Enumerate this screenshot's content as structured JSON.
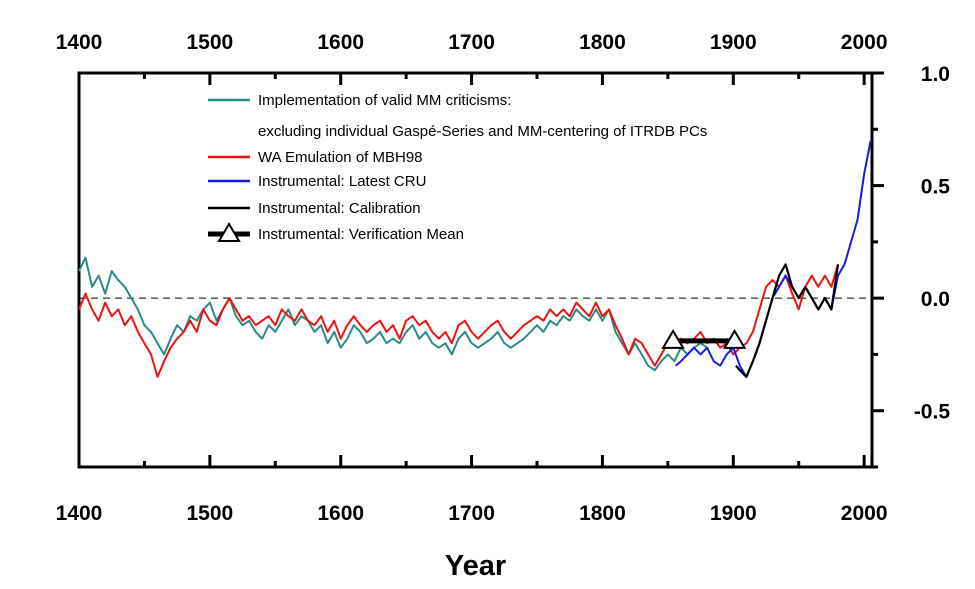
{
  "chart_data": {
    "type": "line",
    "title": "",
    "xlabel": "Year",
    "ylabel": "",
    "xlim": [
      1400,
      2006
    ],
    "ylim": [
      -0.75,
      1.0
    ],
    "x_ticks": [
      1400,
      1500,
      1600,
      1700,
      1800,
      1900,
      2000
    ],
    "x_tick_labels_bottom": [
      "1400",
      "1500",
      "1600",
      "1700",
      "1800",
      "1900",
      "2000"
    ],
    "x_tick_labels_top": [
      "1400",
      "1500",
      "1600",
      "1700",
      "1800",
      "1900",
      "2000"
    ],
    "y_ticks": [
      -0.5,
      0.0,
      0.5,
      1.0
    ],
    "y_tick_labels": [
      "-0.5",
      "0.0",
      "0.5",
      "1.0"
    ],
    "grid": false,
    "zero_reference_line": true,
    "legend_position": "top-center",
    "series": [
      {
        "name": "Implementation of valid MM criticisms:",
        "name_line2": "excluding individual Gaspé-Series and MM-centering of ITRDB PCs",
        "color": "#2a8a86",
        "x": [
          1400,
          1405,
          1410,
          1415,
          1420,
          1425,
          1430,
          1435,
          1440,
          1445,
          1450,
          1455,
          1460,
          1465,
          1470,
          1475,
          1480,
          1485,
          1490,
          1495,
          1500,
          1505,
          1510,
          1515,
          1520,
          1525,
          1530,
          1535,
          1540,
          1545,
          1550,
          1555,
          1560,
          1565,
          1570,
          1575,
          1580,
          1585,
          1590,
          1595,
          1600,
          1605,
          1610,
          1615,
          1620,
          1625,
          1630,
          1635,
          1640,
          1645,
          1650,
          1655,
          1660,
          1665,
          1670,
          1675,
          1680,
          1685,
          1690,
          1695,
          1700,
          1705,
          1710,
          1715,
          1720,
          1725,
          1730,
          1735,
          1740,
          1745,
          1750,
          1755,
          1760,
          1765,
          1770,
          1775,
          1780,
          1785,
          1790,
          1795,
          1800,
          1805,
          1810,
          1815,
          1820,
          1825,
          1830,
          1835,
          1840,
          1845,
          1850,
          1855,
          1860,
          1865,
          1870,
          1875,
          1880
        ],
        "y": [
          0.12,
          0.18,
          0.05,
          0.1,
          0.02,
          0.12,
          0.08,
          0.05,
          0.0,
          -0.05,
          -0.12,
          -0.15,
          -0.2,
          -0.25,
          -0.18,
          -0.12,
          -0.15,
          -0.08,
          -0.1,
          -0.05,
          -0.02,
          -0.1,
          -0.05,
          0.0,
          -0.08,
          -0.12,
          -0.1,
          -0.15,
          -0.18,
          -0.12,
          -0.15,
          -0.1,
          -0.05,
          -0.12,
          -0.08,
          -0.1,
          -0.15,
          -0.12,
          -0.2,
          -0.15,
          -0.22,
          -0.18,
          -0.12,
          -0.15,
          -0.2,
          -0.18,
          -0.15,
          -0.2,
          -0.18,
          -0.2,
          -0.15,
          -0.12,
          -0.18,
          -0.15,
          -0.2,
          -0.22,
          -0.2,
          -0.25,
          -0.18,
          -0.15,
          -0.2,
          -0.22,
          -0.2,
          -0.18,
          -0.15,
          -0.2,
          -0.22,
          -0.2,
          -0.18,
          -0.15,
          -0.12,
          -0.15,
          -0.1,
          -0.12,
          -0.08,
          -0.1,
          -0.05,
          -0.08,
          -0.1,
          -0.05,
          -0.1,
          -0.05,
          -0.15,
          -0.2,
          -0.25,
          -0.2,
          -0.25,
          -0.3,
          -0.32,
          -0.28,
          -0.25,
          -0.28,
          -0.22,
          -0.25,
          -0.22,
          -0.2,
          -0.22
        ]
      },
      {
        "name": "WA Emulation of MBH98",
        "color": "#ee1111",
        "x": [
          1400,
          1405,
          1410,
          1415,
          1420,
          1425,
          1430,
          1435,
          1440,
          1445,
          1450,
          1455,
          1460,
          1465,
          1470,
          1475,
          1480,
          1485,
          1490,
          1495,
          1500,
          1505,
          1510,
          1515,
          1520,
          1525,
          1530,
          1535,
          1540,
          1545,
          1550,
          1555,
          1560,
          1565,
          1570,
          1575,
          1580,
          1585,
          1590,
          1595,
          1600,
          1605,
          1610,
          1615,
          1620,
          1625,
          1630,
          1635,
          1640,
          1645,
          1650,
          1655,
          1660,
          1665,
          1670,
          1675,
          1680,
          1685,
          1690,
          1695,
          1700,
          1705,
          1710,
          1715,
          1720,
          1725,
          1730,
          1735,
          1740,
          1745,
          1750,
          1755,
          1760,
          1765,
          1770,
          1775,
          1780,
          1785,
          1790,
          1795,
          1800,
          1805,
          1810,
          1815,
          1820,
          1825,
          1830,
          1835,
          1840,
          1845,
          1850,
          1855,
          1860,
          1865,
          1870,
          1875,
          1880,
          1885,
          1890,
          1895,
          1900,
          1905,
          1910,
          1915,
          1920,
          1925,
          1930,
          1935,
          1940,
          1945,
          1950,
          1955,
          1960,
          1965,
          1970,
          1975,
          1980
        ],
        "y": [
          -0.05,
          0.02,
          -0.05,
          -0.1,
          -0.02,
          -0.08,
          -0.05,
          -0.12,
          -0.08,
          -0.15,
          -0.2,
          -0.25,
          -0.35,
          -0.28,
          -0.22,
          -0.18,
          -0.15,
          -0.1,
          -0.15,
          -0.05,
          -0.1,
          -0.12,
          -0.05,
          0.0,
          -0.05,
          -0.1,
          -0.08,
          -0.12,
          -0.1,
          -0.08,
          -0.12,
          -0.05,
          -0.08,
          -0.1,
          -0.05,
          -0.1,
          -0.12,
          -0.08,
          -0.15,
          -0.1,
          -0.18,
          -0.12,
          -0.08,
          -0.12,
          -0.15,
          -0.12,
          -0.1,
          -0.15,
          -0.12,
          -0.18,
          -0.1,
          -0.08,
          -0.12,
          -0.1,
          -0.15,
          -0.18,
          -0.15,
          -0.2,
          -0.12,
          -0.1,
          -0.15,
          -0.18,
          -0.15,
          -0.12,
          -0.1,
          -0.15,
          -0.18,
          -0.15,
          -0.12,
          -0.1,
          -0.08,
          -0.1,
          -0.05,
          -0.08,
          -0.05,
          -0.08,
          -0.02,
          -0.05,
          -0.08,
          -0.02,
          -0.08,
          -0.05,
          -0.12,
          -0.18,
          -0.25,
          -0.18,
          -0.2,
          -0.25,
          -0.3,
          -0.25,
          -0.2,
          -0.22,
          -0.18,
          -0.2,
          -0.18,
          -0.15,
          -0.2,
          -0.18,
          -0.22,
          -0.2,
          -0.25,
          -0.22,
          -0.2,
          -0.15,
          -0.05,
          0.05,
          0.08,
          0.05,
          0.1,
          0.02,
          -0.05,
          0.05,
          0.1,
          0.05,
          0.1,
          0.05,
          0.15
        ]
      },
      {
        "name": "Instrumental: Latest CRU",
        "color": "#1a1ae0",
        "x": [
          1856,
          1860,
          1865,
          1870,
          1875,
          1880,
          1885,
          1890,
          1895,
          1900,
          1905,
          1910,
          1915,
          1920,
          1925,
          1930,
          1935,
          1940,
          1945,
          1950,
          1955,
          1960,
          1965,
          1970,
          1975,
          1980,
          1985,
          1990,
          1995,
          2000,
          2005
        ],
        "y": [
          -0.3,
          -0.28,
          -0.25,
          -0.22,
          -0.25,
          -0.22,
          -0.28,
          -0.3,
          -0.25,
          -0.22,
          -0.3,
          -0.35,
          -0.28,
          -0.2,
          -0.1,
          0.0,
          0.05,
          0.1,
          0.05,
          0.0,
          0.05,
          0.0,
          -0.05,
          0.0,
          -0.05,
          0.1,
          0.15,
          0.25,
          0.35,
          0.55,
          0.7
        ]
      },
      {
        "name": "Instrumental: Calibration",
        "color": "#000000",
        "x": [
          1902,
          1905,
          1910,
          1915,
          1920,
          1925,
          1930,
          1935,
          1940,
          1945,
          1950,
          1955,
          1960,
          1965,
          1970,
          1975,
          1980
        ],
        "y": [
          -0.3,
          -0.32,
          -0.35,
          -0.28,
          -0.2,
          -0.1,
          0.0,
          0.1,
          0.15,
          0.05,
          0.0,
          0.05,
          0.0,
          -0.05,
          0.0,
          -0.05,
          0.15
        ]
      },
      {
        "name": "Instrumental: Verification Mean",
        "color": "#000000",
        "x": [
          1854,
          1901
        ],
        "y": [
          -0.19,
          -0.19
        ]
      }
    ]
  }
}
